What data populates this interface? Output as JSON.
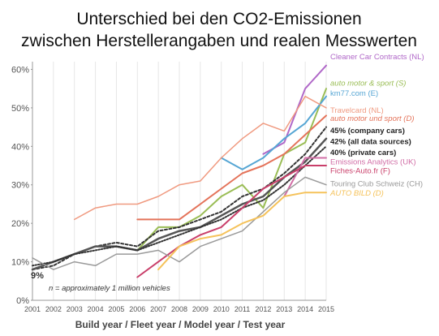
{
  "chart_data": {
    "type": "line",
    "title_lines": [
      "Unterschied bei den CO2-Emissionen",
      "zwischen Herstellerangaben und realen Messwerten"
    ],
    "xlabel": "Build year / Fleet year / Model year / Test year",
    "ylabel": "",
    "x": [
      2001,
      2002,
      2003,
      2004,
      2005,
      2006,
      2007,
      2008,
      2009,
      2010,
      2011,
      2012,
      2013,
      2014,
      2015
    ],
    "x_ticks": [
      "2001",
      "2002",
      "2003",
      "2004",
      "2005",
      "2006",
      "2007",
      "2008",
      "2009",
      "2010",
      "2011",
      "2012",
      "2013",
      "2014",
      "2015"
    ],
    "ylim": [
      0,
      62
    ],
    "y_ticks": [
      "0%",
      "10%",
      "20%",
      "30%",
      "40%",
      "50%",
      "60%"
    ],
    "y_tick_values": [
      0,
      10,
      20,
      30,
      40,
      50,
      60
    ],
    "grid": "vertical",
    "legend_placement": "right, labels at line ends",
    "start_label": "9%",
    "annotation": "n = approximately 1 million vehicles",
    "series": [
      {
        "name": "Cleaner Car Contracts (NL)",
        "color": "#b068c8",
        "width": 2,
        "dash": "",
        "italic": false,
        "bold": false,
        "values": [
          null,
          null,
          null,
          null,
          null,
          null,
          null,
          null,
          null,
          null,
          null,
          38,
          41,
          55,
          61
        ]
      },
      {
        "name": "auto motor & sport (S)",
        "color": "#9abd55",
        "width": 2,
        "dash": "",
        "italic": true,
        "bold": false,
        "values": [
          null,
          null,
          null,
          null,
          null,
          13,
          19,
          19,
          22,
          27,
          30,
          24,
          38,
          41,
          55
        ]
      },
      {
        "name": "km77.com (E)",
        "color": "#56a6d4",
        "width": 2,
        "dash": "",
        "italic": false,
        "bold": false,
        "values": [
          null,
          null,
          null,
          null,
          null,
          null,
          null,
          null,
          null,
          37,
          34,
          37,
          42,
          46,
          53
        ]
      },
      {
        "name": "Travelcard (NL)",
        "color": "#f09a80",
        "width": 1.5,
        "dash": "",
        "italic": false,
        "bold": false,
        "values": [
          null,
          null,
          21,
          24,
          25,
          25,
          27,
          30,
          31,
          37,
          42,
          46,
          44,
          53,
          50
        ]
      },
      {
        "name": "auto motor und sport (D)",
        "color": "#e4735a",
        "width": 2,
        "dash": "",
        "italic": true,
        "bold": false,
        "values": [
          null,
          null,
          null,
          null,
          null,
          21,
          21,
          21,
          25,
          29,
          33,
          35,
          38,
          43,
          48
        ]
      },
      {
        "name": "45% (company cars)",
        "color": "#333333",
        "width": 2,
        "dash": "3,2.5",
        "italic": false,
        "bold": true,
        "values": [
          8,
          9,
          12,
          14,
          15,
          14,
          18,
          19,
          21,
          23,
          27,
          29,
          33,
          38,
          45
        ]
      },
      {
        "name": "42% (all data sources)",
        "color": "#555555",
        "width": 2.5,
        "dash": "",
        "italic": false,
        "bold": true,
        "values": [
          8,
          10,
          12,
          14,
          14,
          13,
          16,
          18,
          19,
          22,
          25,
          27,
          32,
          36,
          42
        ]
      },
      {
        "name": "40% (private cars)",
        "color": "#333333",
        "width": 2,
        "dash": "1.5,2",
        "italic": false,
        "bold": true,
        "values": [
          9,
          10,
          12,
          13,
          14,
          13,
          15,
          17,
          19,
          21,
          24,
          26,
          30,
          35,
          40
        ]
      },
      {
        "name": "Emissions Analytics (UK)",
        "color": "#d16ea6",
        "width": 2,
        "dash": "",
        "italic": false,
        "bold": false,
        "values": [
          null,
          null,
          null,
          null,
          null,
          null,
          null,
          null,
          null,
          null,
          null,
          null,
          27,
          37,
          37
        ]
      },
      {
        "name": "Fiches-Auto.fr (F)",
        "color": "#c93f6a",
        "width": 2,
        "dash": "",
        "italic": false,
        "bold": false,
        "values": [
          null,
          null,
          null,
          null,
          null,
          6,
          10,
          14,
          17,
          19,
          24,
          29,
          32,
          35,
          35
        ]
      },
      {
        "name": "Touring Club Schweiz (CH)",
        "color": "#9a9a9a",
        "width": 1.5,
        "dash": "",
        "italic": false,
        "bold": false,
        "values": [
          11,
          8,
          10,
          9,
          12,
          12,
          13,
          10,
          14,
          16,
          18,
          23,
          28,
          32,
          30
        ]
      },
      {
        "name": "AUTO BILD (D)",
        "color": "#f5c25a",
        "width": 2,
        "dash": "",
        "italic": true,
        "bold": false,
        "values": [
          null,
          null,
          null,
          null,
          null,
          null,
          8,
          14,
          16,
          17,
          20,
          22,
          27,
          28,
          28
        ]
      }
    ],
    "labels": [
      {
        "series": 0,
        "text": "Cleaner Car Contracts (NL)",
        "label_y": 63.3
      },
      {
        "series": 1,
        "text": "auto motor & sport (S)",
        "label_y": 56.4
      },
      {
        "series": 2,
        "text": "km77.com (E)",
        "label_y": 53.8
      },
      {
        "series": 3,
        "text": "Travelcard (NL)",
        "label_y": 49.3
      },
      {
        "series": 4,
        "text": "auto motor und sport (D)",
        "label_y": 47.2
      },
      {
        "series": 5,
        "text": "45% (company cars)",
        "label_y": 44.1
      },
      {
        "series": 6,
        "text": "42% (all data sources)",
        "label_y": 41.2
      },
      {
        "series": 7,
        "text": "40% (private cars)",
        "label_y": 38.4
      },
      {
        "series": 8,
        "text": "Emissions Analytics (UK)",
        "label_y": 36.0
      },
      {
        "series": 9,
        "text": "Fiches-Auto.fr (F)",
        "label_y": 33.6
      },
      {
        "series": 10,
        "text": "Touring Club Schweiz (CH)",
        "label_y": 30.3
      },
      {
        "series": 11,
        "text": "AUTO BILD (D)",
        "label_y": 27.8
      }
    ]
  }
}
